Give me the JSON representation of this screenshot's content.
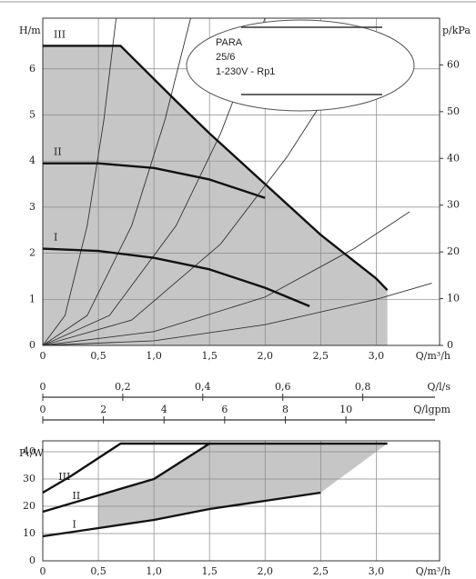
{
  "chart_data": [
    {
      "type": "line",
      "y_label": "H/m",
      "y2_label": "p/kPa",
      "x_label": "Q/m³/h",
      "xlim": [
        0,
        3.57
      ],
      "ylim": [
        0,
        7.1
      ],
      "y2lim": [
        0,
        70
      ],
      "xticks": [
        0,
        {
          "value": 0.5,
          "label": "0,5"
        },
        {
          "value": 1.0,
          "label": "1,0"
        },
        {
          "value": 1.5,
          "label": "1,5"
        },
        {
          "value": 2.0,
          "label": "2,0"
        },
        {
          "value": 2.5,
          "label": "2,5"
        },
        {
          "value": 3.0,
          "label": "3,0"
        }
      ],
      "yticks": [
        0,
        1,
        2,
        3,
        4,
        5,
        6
      ],
      "y2ticks": [
        0,
        10,
        20,
        30,
        40,
        50,
        60
      ],
      "grid": true,
      "fill_color": "#c6c6c6",
      "series": [
        {
          "name": "III",
          "color": "#111111",
          "x": [
            0,
            0.7,
            1.2,
            1.5,
            2.0,
            2.5,
            3.0,
            3.1
          ],
          "values": [
            6.5,
            6.5,
            5.3,
            4.6,
            3.5,
            2.4,
            1.45,
            1.2
          ]
        },
        {
          "name": "II",
          "color": "#111111",
          "x": [
            0,
            0.5,
            1.0,
            1.5,
            2.0
          ],
          "values": [
            3.95,
            3.95,
            3.85,
            3.6,
            3.2
          ]
        },
        {
          "name": "I",
          "color": "#111111",
          "x": [
            0,
            0.5,
            1.0,
            1.5,
            2.0,
            2.4
          ],
          "values": [
            2.1,
            2.05,
            1.9,
            1.65,
            1.25,
            0.85
          ]
        }
      ],
      "system_curves": [
        {
          "x": [
            0,
            0.2,
            0.4,
            0.55,
            0.66
          ],
          "values": [
            0,
            0.65,
            2.6,
            4.9,
            7.1
          ]
        },
        {
          "x": [
            0,
            0.4,
            0.8,
            1.1,
            1.33
          ],
          "values": [
            0,
            0.65,
            2.6,
            4.9,
            7.1
          ]
        },
        {
          "x": [
            0,
            0.6,
            1.2,
            1.6,
            2.0
          ],
          "values": [
            0,
            0.65,
            2.6,
            4.6,
            7.1
          ]
        },
        {
          "x": [
            0,
            0.8,
            1.6,
            2.2,
            2.6
          ],
          "values": [
            0,
            0.55,
            2.2,
            4.1,
            5.6
          ]
        },
        {
          "x": [
            0,
            1.0,
            2.0,
            2.8,
            3.3
          ],
          "values": [
            0,
            0.3,
            1.05,
            2.1,
            2.9
          ]
        },
        {
          "x": [
            0,
            1.0,
            2.0,
            3.0,
            3.5
          ],
          "values": [
            0,
            0.1,
            0.45,
            1.0,
            1.35
          ]
        }
      ],
      "secondary_x_axes": [
        {
          "label": "Q/l/s",
          "xlim": [
            0,
            0.992
          ],
          "xticks": [
            0,
            {
              "value": 0.2,
              "label": "0,2"
            },
            {
              "value": 0.4,
              "label": "0,4"
            },
            {
              "value": 0.6,
              "label": "0,6"
            },
            {
              "value": 0.8,
              "label": "0,8"
            }
          ]
        },
        {
          "label": "Q/lgpm",
          "xlim": [
            0,
            13.09
          ],
          "xticks": [
            0,
            2,
            4,
            6,
            8,
            10
          ]
        }
      ],
      "pump_label": [
        "PARA",
        "25/6",
        "1-230V - Rp1"
      ]
    },
    {
      "type": "line",
      "y_label": "P₁/W",
      "x_label": "Q/m³/h",
      "xlim": [
        0,
        3.57
      ],
      "ylim": [
        0,
        44
      ],
      "xticks": [
        0,
        {
          "value": 0.5,
          "label": "0,5"
        },
        {
          "value": 1.0,
          "label": "1,0"
        },
        {
          "value": 1.5,
          "label": "1,5"
        },
        {
          "value": 2.0,
          "label": "2,0"
        },
        {
          "value": 2.5,
          "label": "2,5"
        },
        {
          "value": 3.0,
          "label": "3,0"
        }
      ],
      "yticks": [
        0,
        10,
        20,
        30,
        40
      ],
      "grid": true,
      "fill_color": "#c6c6c6",
      "series": [
        {
          "name": "III",
          "color": "#111111",
          "x": [
            0,
            0.25,
            0.7,
            3.1
          ],
          "values": [
            25,
            31,
            43,
            43
          ]
        },
        {
          "name": "II",
          "color": "#111111",
          "x": [
            0,
            0.5,
            1.0,
            1.5
          ],
          "values": [
            18,
            24,
            30,
            43
          ]
        },
        {
          "name": "I",
          "color": "#111111",
          "x": [
            0,
            0.5,
            1.0,
            1.5,
            2.0,
            2.5
          ],
          "values": [
            9,
            12,
            15,
            19,
            22,
            25
          ]
        }
      ]
    }
  ]
}
